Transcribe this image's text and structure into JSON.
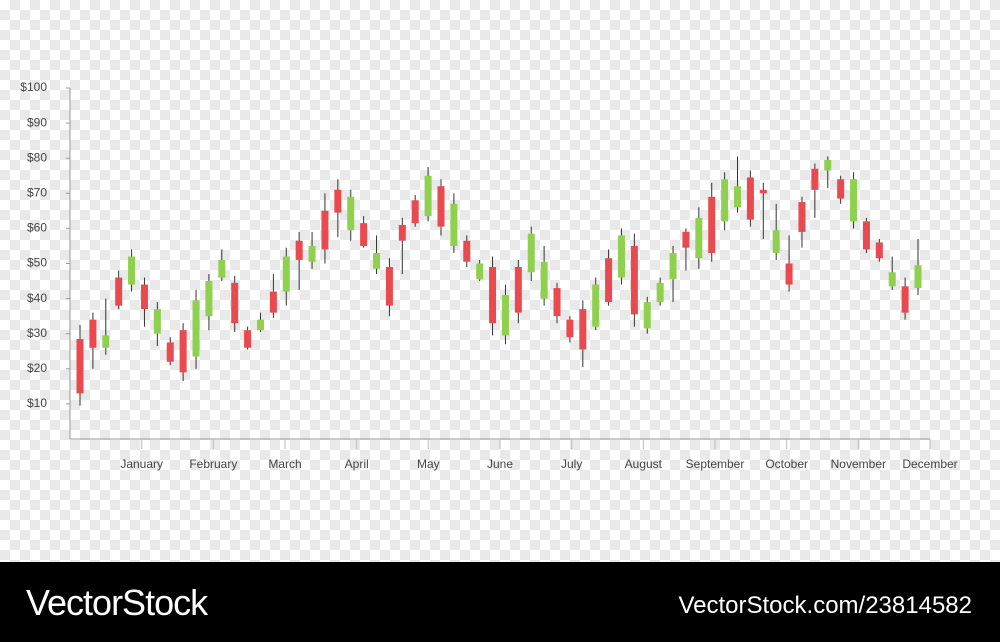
{
  "chart_data": {
    "type": "candlestick",
    "ylim": [
      0,
      100
    ],
    "yticks": [
      {
        "value": 10,
        "label": "$10"
      },
      {
        "value": 20,
        "label": "$20"
      },
      {
        "value": 30,
        "label": "$30"
      },
      {
        "value": 40,
        "label": "$40"
      },
      {
        "value": 50,
        "label": "$50"
      },
      {
        "value": 60,
        "label": "$60"
      },
      {
        "value": 70,
        "label": "$70"
      },
      {
        "value": 80,
        "label": "$80"
      },
      {
        "value": 90,
        "label": "$90"
      },
      {
        "value": 100,
        "label": "$100"
      }
    ],
    "months": [
      "January",
      "February",
      "March",
      "April",
      "May",
      "June",
      "July",
      "August",
      "September",
      "October",
      "November",
      "December"
    ],
    "up_color": "#8fd14f",
    "down_color": "#e84a4f",
    "open": [
      28.5,
      34,
      26,
      46,
      44,
      44,
      30,
      27.5,
      31,
      23.5,
      35,
      46,
      44.5,
      31,
      31,
      42,
      42,
      56.5,
      50.5,
      65,
      71,
      59.5,
      61.5,
      48.5,
      49,
      61,
      68,
      63.5,
      72,
      55,
      56.5,
      45.5,
      49,
      29.5,
      49,
      47.5,
      40,
      43,
      34,
      37,
      32,
      51.5,
      46,
      55,
      31.5,
      39,
      45.5,
      59,
      51.5,
      69,
      62,
      66,
      74.5,
      71,
      53,
      50,
      67.5,
      77,
      76.5,
      74,
      62,
      62,
      56,
      43.5,
      43.5,
      43
    ],
    "close": [
      13,
      26,
      29.5,
      38,
      52,
      37,
      37,
      22,
      19,
      39.5,
      45,
      51,
      33,
      26,
      34,
      36,
      52,
      51,
      55,
      54,
      64.5,
      69,
      55,
      53,
      38,
      56.5,
      61.5,
      75,
      60.5,
      67,
      50.5,
      50,
      33,
      41,
      36,
      58.5,
      50.5,
      35,
      29,
      25.5,
      44,
      39,
      58,
      35.5,
      39,
      44.5,
      53,
      54.5,
      63,
      53,
      74,
      72,
      62.5,
      70,
      59.5,
      44,
      59,
      71,
      79.5,
      68.5,
      74,
      54,
      51.5,
      47.5,
      36,
      49.5
    ],
    "high": [
      32.5,
      36,
      40,
      48,
      54,
      46,
      39,
      29,
      33,
      42.5,
      47,
      54,
      46.5,
      32,
      36,
      47,
      54.5,
      59,
      59,
      70,
      74,
      71,
      63.5,
      58,
      51.5,
      63,
      69.5,
      77.5,
      74,
      70,
      58,
      51,
      52,
      44,
      51,
      60.5,
      55,
      44.5,
      35,
      39.5,
      46,
      54,
      60,
      58.5,
      40.5,
      46,
      55,
      60,
      66,
      73,
      76,
      80.5,
      76.5,
      73,
      67,
      58,
      69,
      78.5,
      80.5,
      75,
      76,
      63,
      57,
      52,
      46,
      57
    ],
    "low": [
      9.5,
      20,
      24,
      37,
      42,
      32,
      26.5,
      21,
      16.5,
      20,
      31,
      45,
      30.5,
      25.5,
      30.5,
      34.5,
      38,
      42.5,
      48.5,
      50,
      57.5,
      56.5,
      54.5,
      47,
      35,
      47,
      60.5,
      62,
      58,
      53,
      49,
      45,
      29.5,
      27,
      33,
      45,
      38,
      33,
      27.5,
      20.5,
      31,
      38,
      44,
      32,
      30,
      38,
      39,
      48,
      48.5,
      50.5,
      59.5,
      64.5,
      60.5,
      57,
      51,
      42,
      54.5,
      63,
      71.5,
      67,
      60,
      53,
      50.5,
      42.5,
      34,
      41
    ]
  },
  "watermark": {
    "brand": "VectorStock",
    "id": "VectorStock.com/23814582"
  }
}
